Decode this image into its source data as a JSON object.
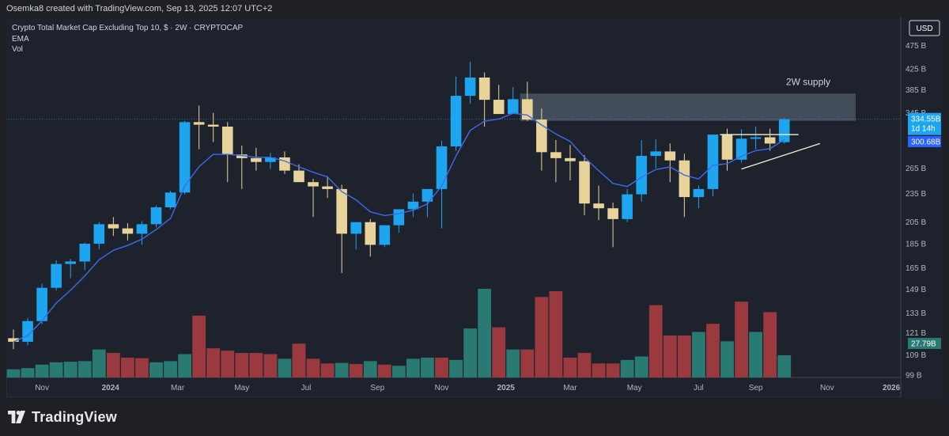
{
  "header": {
    "attribution": "Osemka8 created with TradingView.com, Sep 13, 2025 12:07 UTC+2"
  },
  "legend": {
    "symbol": "Crypto Total Market Cap Excluding Top 10, $ · 2W · CRYPTOCAP",
    "ema_label": "EMA",
    "vol_label": "Vol"
  },
  "footer": {
    "brand": "TradingView"
  },
  "colors": {
    "bull": "#1ea5f0",
    "bear": "#e8d49a",
    "vol_up": "#2a7a74",
    "vol_down": "#9b3a3e",
    "ema": "#3d6be8",
    "supply_zone": "#4a5562",
    "trendline": "#f3efd6",
    "background": "#1e222d"
  },
  "chart_data": {
    "type": "candlestick",
    "title": "Crypto Total Market Cap Excluding Top 10, $ · 2W · CRYPTOCAP",
    "currency_button": "USD",
    "y_scale": "log",
    "y_tick_labels": [
      "475 B",
      "425 B",
      "385 B",
      "345 B",
      "265 B",
      "235 B",
      "205 B",
      "185 B",
      "165 B",
      "149 B",
      "133 B",
      "121 B",
      "109 B",
      "99 B"
    ],
    "y_tick_values": [
      475,
      425,
      385,
      345,
      265,
      235,
      205,
      185,
      165,
      149,
      133,
      121,
      109,
      99
    ],
    "x_tick_labels": [
      "Nov",
      "2024",
      "Mar",
      "May",
      "Jul",
      "Sep",
      "Nov",
      "2025",
      "Mar",
      "May",
      "Jul",
      "Sep",
      "Nov",
      "2026"
    ],
    "x_tick_bar_index": [
      2,
      6.8,
      11.5,
      16,
      20.5,
      25.5,
      30,
      34.5,
      39,
      43.5,
      48,
      52,
      57,
      61.5
    ],
    "bold_x_ticks": [
      "2024",
      "2025",
      "2026"
    ],
    "price_labels": [
      {
        "text": "334.55B",
        "value": 334.55,
        "sub": "1d 14h",
        "color": "#1ea5f0"
      },
      {
        "text": "300.68B",
        "value": 300.68,
        "color": "#2962ff"
      }
    ],
    "volume_label": "27.79B",
    "annotation": "2W supply",
    "supply_zone": {
      "from_bar": 35.5,
      "to_bar": 59,
      "low": 332,
      "high": 378
    },
    "candles": [
      {
        "o": 118,
        "h": 123,
        "l": 112,
        "c": 116
      },
      {
        "o": 116,
        "h": 130,
        "l": 114,
        "c": 128
      },
      {
        "o": 128,
        "h": 153,
        "l": 126,
        "c": 150
      },
      {
        "o": 150,
        "h": 171,
        "l": 148,
        "c": 168
      },
      {
        "o": 168,
        "h": 172,
        "l": 157,
        "c": 170
      },
      {
        "o": 170,
        "h": 186,
        "l": 163,
        "c": 185
      },
      {
        "o": 185,
        "h": 205,
        "l": 180,
        "c": 203
      },
      {
        "o": 203,
        "h": 210,
        "l": 192,
        "c": 199
      },
      {
        "o": 199,
        "h": 204,
        "l": 188,
        "c": 194
      },
      {
        "o": 194,
        "h": 206,
        "l": 184,
        "c": 203
      },
      {
        "o": 203,
        "h": 222,
        "l": 200,
        "c": 220
      },
      {
        "o": 220,
        "h": 238,
        "l": 218,
        "c": 236
      },
      {
        "o": 236,
        "h": 332,
        "l": 234,
        "c": 330
      },
      {
        "o": 330,
        "h": 357,
        "l": 290,
        "c": 326
      },
      {
        "o": 326,
        "h": 345,
        "l": 300,
        "c": 323
      },
      {
        "o": 323,
        "h": 330,
        "l": 248,
        "c": 283
      },
      {
        "o": 283,
        "h": 295,
        "l": 240,
        "c": 278
      },
      {
        "o": 278,
        "h": 292,
        "l": 262,
        "c": 273
      },
      {
        "o": 273,
        "h": 285,
        "l": 264,
        "c": 279
      },
      {
        "o": 279,
        "h": 287,
        "l": 258,
        "c": 262
      },
      {
        "o": 262,
        "h": 270,
        "l": 250,
        "c": 248
      },
      {
        "o": 248,
        "h": 252,
        "l": 210,
        "c": 243
      },
      {
        "o": 243,
        "h": 255,
        "l": 230,
        "c": 240
      },
      {
        "o": 240,
        "h": 245,
        "l": 161,
        "c": 194
      },
      {
        "o": 194,
        "h": 202,
        "l": 180,
        "c": 205
      },
      {
        "o": 205,
        "h": 208,
        "l": 174,
        "c": 184
      },
      {
        "o": 184,
        "h": 202,
        "l": 182,
        "c": 202
      },
      {
        "o": 202,
        "h": 215,
        "l": 195,
        "c": 218
      },
      {
        "o": 218,
        "h": 235,
        "l": 210,
        "c": 226
      },
      {
        "o": 226,
        "h": 240,
        "l": 210,
        "c": 240
      },
      {
        "o": 240,
        "h": 302,
        "l": 199,
        "c": 294
      },
      {
        "o": 294,
        "h": 410,
        "l": 288,
        "c": 374
      },
      {
        "o": 374,
        "h": 440,
        "l": 360,
        "c": 408
      },
      {
        "o": 408,
        "h": 418,
        "l": 323,
        "c": 367
      },
      {
        "o": 367,
        "h": 394,
        "l": 345,
        "c": 343
      },
      {
        "o": 343,
        "h": 390,
        "l": 343,
        "c": 368
      },
      {
        "o": 368,
        "h": 400,
        "l": 332,
        "c": 334
      },
      {
        "o": 334,
        "h": 352,
        "l": 262,
        "c": 286
      },
      {
        "o": 286,
        "h": 303,
        "l": 248,
        "c": 278
      },
      {
        "o": 278,
        "h": 296,
        "l": 250,
        "c": 274
      },
      {
        "o": 274,
        "h": 282,
        "l": 212,
        "c": 224
      },
      {
        "o": 224,
        "h": 244,
        "l": 207,
        "c": 219
      },
      {
        "o": 219,
        "h": 225,
        "l": 182,
        "c": 208
      },
      {
        "o": 208,
        "h": 240,
        "l": 205,
        "c": 234
      },
      {
        "o": 234,
        "h": 303,
        "l": 226,
        "c": 281
      },
      {
        "o": 281,
        "h": 304,
        "l": 265,
        "c": 287
      },
      {
        "o": 287,
        "h": 298,
        "l": 248,
        "c": 275
      },
      {
        "o": 275,
        "h": 284,
        "l": 210,
        "c": 231
      },
      {
        "o": 231,
        "h": 244,
        "l": 219,
        "c": 240
      },
      {
        "o": 240,
        "h": 310,
        "l": 232,
        "c": 311
      },
      {
        "o": 311,
        "h": 320,
        "l": 262,
        "c": 276
      },
      {
        "o": 276,
        "h": 319,
        "l": 272,
        "c": 305
      },
      {
        "o": 305,
        "h": 323,
        "l": 290,
        "c": 307
      },
      {
        "o": 307,
        "h": 320,
        "l": 288,
        "c": 298
      },
      {
        "o": 300,
        "h": 336,
        "l": 298,
        "c": 334.55
      }
    ],
    "volume_bars": [
      {
        "v": 14,
        "up": true
      },
      {
        "v": 16,
        "up": true
      },
      {
        "v": 22,
        "up": true
      },
      {
        "v": 26,
        "up": true
      },
      {
        "v": 27,
        "up": true
      },
      {
        "v": 28,
        "up": true
      },
      {
        "v": 48,
        "up": true
      },
      {
        "v": 42,
        "up": false
      },
      {
        "v": 34,
        "up": false
      },
      {
        "v": 33,
        "up": false
      },
      {
        "v": 26,
        "up": true
      },
      {
        "v": 28,
        "up": true
      },
      {
        "v": 40,
        "up": true
      },
      {
        "v": 106,
        "up": false
      },
      {
        "v": 50,
        "up": false
      },
      {
        "v": 46,
        "up": false
      },
      {
        "v": 42,
        "up": false
      },
      {
        "v": 42,
        "up": false
      },
      {
        "v": 40,
        "up": false
      },
      {
        "v": 32,
        "up": true
      },
      {
        "v": 58,
        "up": false
      },
      {
        "v": 32,
        "up": false
      },
      {
        "v": 24,
        "up": false
      },
      {
        "v": 25,
        "up": true
      },
      {
        "v": 23,
        "up": false
      },
      {
        "v": 28,
        "up": true
      },
      {
        "v": 22,
        "up": false
      },
      {
        "v": 20,
        "up": true
      },
      {
        "v": 32,
        "up": true
      },
      {
        "v": 34,
        "up": true
      },
      {
        "v": 34,
        "up": false
      },
      {
        "v": 30,
        "up": true
      },
      {
        "v": 84,
        "up": true
      },
      {
        "v": 152,
        "up": true
      },
      {
        "v": 86,
        "up": false
      },
      {
        "v": 48,
        "up": true
      },
      {
        "v": 48,
        "up": false
      },
      {
        "v": 138,
        "up": false
      },
      {
        "v": 148,
        "up": false
      },
      {
        "v": 34,
        "up": false
      },
      {
        "v": 42,
        "up": false
      },
      {
        "v": 24,
        "up": false
      },
      {
        "v": 24,
        "up": false
      },
      {
        "v": 30,
        "up": true
      },
      {
        "v": 36,
        "up": true
      },
      {
        "v": 124,
        "up": false
      },
      {
        "v": 72,
        "up": false
      },
      {
        "v": 72,
        "up": false
      },
      {
        "v": 78,
        "up": true
      },
      {
        "v": 92,
        "up": false
      },
      {
        "v": 62,
        "up": true
      },
      {
        "v": 130,
        "up": false
      },
      {
        "v": 78,
        "up": true
      },
      {
        "v": 112,
        "up": false
      },
      {
        "v": 38,
        "up": true
      }
    ],
    "resistance_line": {
      "from_bar": 49.5,
      "to_bar": 55,
      "value": 311
    },
    "rising_trendline": {
      "from_bar": 51,
      "from_value": 264,
      "to_bar": 56.5,
      "to_value": 298
    }
  }
}
